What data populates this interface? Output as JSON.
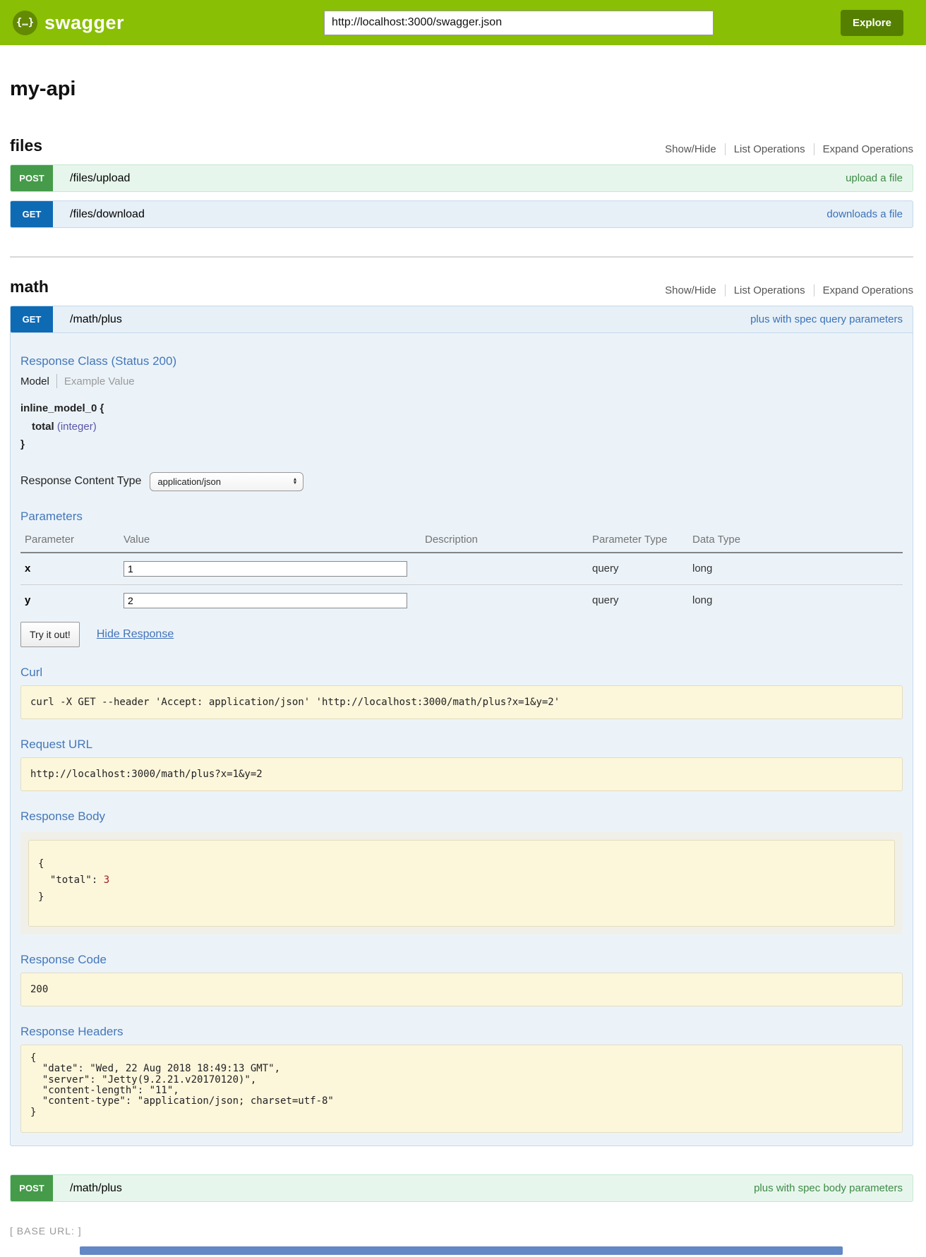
{
  "header": {
    "logo_glyph": "{…}",
    "brand": "swagger",
    "url_value": "http://localhost:3000/swagger.json",
    "explore_label": "Explore"
  },
  "page_title": "my-api",
  "controls": {
    "show_hide": "Show/Hide",
    "list_operations": "List Operations",
    "expand_operations": "Expand Operations"
  },
  "sections": [
    {
      "name": "files",
      "operations": [
        {
          "method": "POST",
          "path": "/files/upload",
          "summary": "upload a file"
        },
        {
          "method": "GET",
          "path": "/files/download",
          "summary": "downloads a file"
        }
      ]
    },
    {
      "name": "math",
      "operations": [
        {
          "method": "GET",
          "path": "/math/plus",
          "summary": "plus with spec query parameters"
        },
        {
          "method": "POST",
          "path": "/math/plus",
          "summary": "plus with spec body parameters"
        }
      ]
    }
  ],
  "detail": {
    "response_class_heading": "Response Class (Status 200)",
    "tab_model": "Model",
    "tab_example": "Example Value",
    "model_open": "inline_model_0 {",
    "model_prop_name": "total",
    "model_prop_type": "(integer)",
    "model_close": "}",
    "response_content_type_label": "Response Content Type",
    "response_content_type_value": "application/json",
    "parameters_heading": "Parameters",
    "param_columns": [
      "Parameter",
      "Value",
      "Description",
      "Parameter Type",
      "Data Type"
    ],
    "param_rows": [
      {
        "name": "x",
        "value": "1",
        "description": "",
        "param_type": "query",
        "data_type": "long"
      },
      {
        "name": "y",
        "value": "2",
        "description": "",
        "param_type": "query",
        "data_type": "long"
      }
    ],
    "try_it_out": "Try it out!",
    "hide_response": "Hide Response",
    "curl_heading": "Curl",
    "curl_command": "curl -X GET --header 'Accept: application/json' 'http://localhost:3000/math/plus?x=1&y=2'",
    "request_url_heading": "Request URL",
    "request_url_value": "http://localhost:3000/math/plus?x=1&y=2",
    "response_body_heading": "Response Body",
    "response_body_line1": "{",
    "response_body_key": "  \"total\": ",
    "response_body_value": "3",
    "response_body_line3": "}",
    "response_code_heading": "Response Code",
    "response_code_value": "200",
    "response_headers_heading": "Response Headers",
    "response_headers_lines": [
      "{",
      "  \"date\": \"Wed, 22 Aug 2018 18:49:13 GMT\",",
      "  \"server\": \"Jetty(9.2.21.v20170120)\",",
      "  \"content-length\": \"11\",",
      "  \"content-type\": \"application/json; charset=utf-8\"",
      "}"
    ]
  },
  "footer": {
    "base_url": "[ BASE URL: ]"
  },
  "colors": {
    "header_green": "#89bf04",
    "explore_green": "#547f00",
    "get_blue": "#0f6ab4",
    "post_green": "#459b49",
    "heading_blue": "#4577b8",
    "code_box_bg": "#fcf6db",
    "json_number_red": "#992222"
  }
}
